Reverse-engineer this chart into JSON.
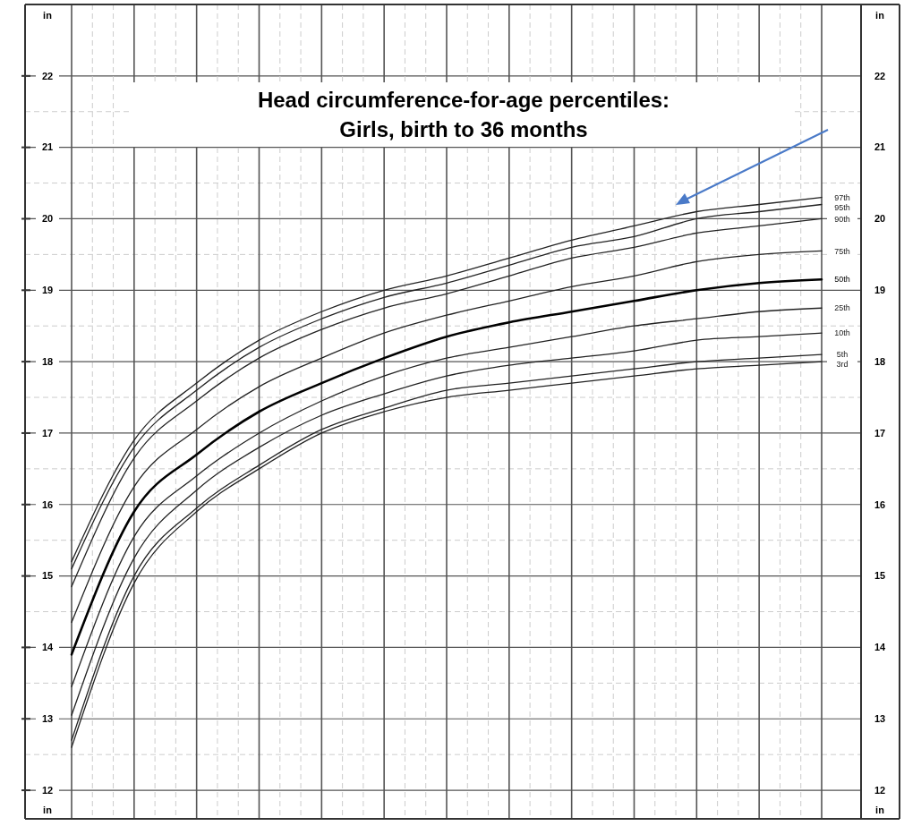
{
  "chart_data": {
    "type": "line",
    "title": "Head circumference-for-age percentiles:",
    "subtitle": "Girls, birth to 36 months",
    "ylabel": "in",
    "y2label": "in",
    "categories": [
      null,
      null,
      null,
      null,
      null,
      null,
      null,
      null,
      null,
      null,
      null,
      null,
      null
    ],
    "ylim": [
      11.6,
      23
    ],
    "yticks": [
      12,
      13,
      14,
      15,
      16,
      17,
      18,
      19,
      20,
      21,
      22
    ],
    "y2lim": [
      11.6,
      23
    ],
    "y2ticks": [
      12,
      13,
      14,
      15,
      16,
      17,
      18,
      19,
      20,
      21,
      22
    ],
    "grid": true,
    "tick_labels": "y",
    "line_style": "solid",
    "series": [
      {
        "name": "97th",
        "color": "#222222",
        "values": [
          15.2,
          16.9,
          17.7,
          18.3,
          18.7,
          19.0,
          19.2,
          19.45,
          19.7,
          19.9,
          20.1,
          20.2,
          20.3
        ]
      },
      {
        "name": "95th",
        "color": "#222222",
        "values": [
          15.1,
          16.8,
          17.6,
          18.2,
          18.6,
          18.9,
          19.1,
          19.35,
          19.6,
          19.75,
          20.0,
          20.1,
          20.2
        ]
      },
      {
        "name": "90th",
        "color": "#222222",
        "values": [
          14.85,
          16.65,
          17.45,
          18.05,
          18.45,
          18.75,
          18.95,
          19.2,
          19.45,
          19.6,
          19.8,
          19.9,
          20.0
        ]
      },
      {
        "name": "75th",
        "color": "#222222",
        "values": [
          14.35,
          16.25,
          17.05,
          17.65,
          18.05,
          18.4,
          18.65,
          18.85,
          19.05,
          19.2,
          19.4,
          19.5,
          19.55
        ]
      },
      {
        "name": "50th",
        "color": "#000000",
        "values": [
          13.9,
          15.9,
          16.7,
          17.3,
          17.7,
          18.05,
          18.35,
          18.55,
          18.7,
          18.85,
          19.0,
          19.1,
          19.15
        ]
      },
      {
        "name": "25th",
        "color": "#222222",
        "values": [
          13.45,
          15.55,
          16.4,
          17.0,
          17.45,
          17.8,
          18.05,
          18.2,
          18.35,
          18.5,
          18.6,
          18.7,
          18.75
        ]
      },
      {
        "name": "10th",
        "color": "#222222",
        "values": [
          13.05,
          15.25,
          16.2,
          16.8,
          17.25,
          17.55,
          17.8,
          17.95,
          18.05,
          18.15,
          18.3,
          18.35,
          18.4
        ]
      },
      {
        "name": "5th",
        "color": "#222222",
        "values": [
          12.7,
          15.0,
          15.95,
          16.55,
          17.05,
          17.35,
          17.6,
          17.7,
          17.8,
          17.9,
          18.0,
          18.05,
          18.1
        ]
      },
      {
        "name": "3rd",
        "color": "#222222",
        "values": [
          12.6,
          14.9,
          15.9,
          16.5,
          17.0,
          17.3,
          17.5,
          17.6,
          17.7,
          17.8,
          17.9,
          17.95,
          18.0
        ]
      }
    ]
  }
}
